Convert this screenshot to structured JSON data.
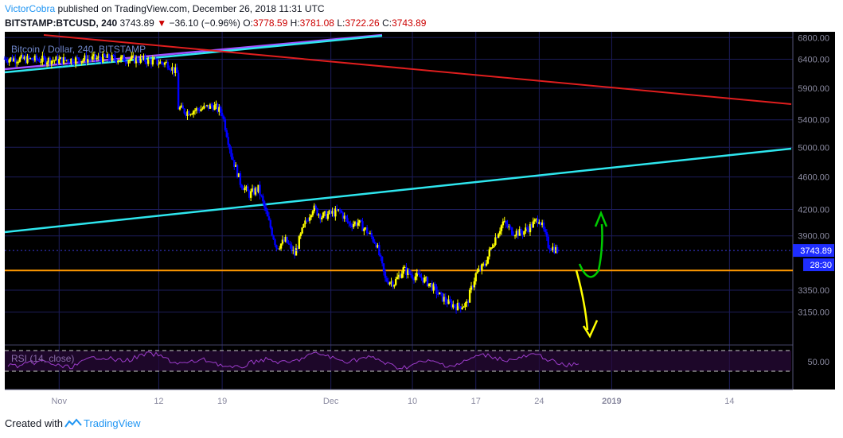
{
  "header": {
    "author": "VictorCobra",
    "published_text": "published on TradingView.com, December 26, 2018 11:31 UTC",
    "symbol": "BITSTAMP:BTCUSD, 240",
    "last_price": "3743.89",
    "change": "−36.10 (−0.96%)",
    "open_label": "O:",
    "open": "3778.59",
    "high_label": "H:",
    "high": "3781.08",
    "low_label": "L:",
    "low": "3722.26",
    "close_label": "C:",
    "close": "3743.89"
  },
  "footer": {
    "created_with": "Created with",
    "brand": "TradingView"
  },
  "colors": {
    "background": "#000000",
    "grid": "#1c1c5a",
    "up_candle": "#ffff00",
    "down_candle": "#0000ff",
    "trend_cyan": "#2ee6ee",
    "trend_red": "#e01e1e",
    "trend_purple": "#a050ff",
    "support_orange": "#ff9900",
    "arrow_green": "#00cc00",
    "arrow_yellow": "#ffff00",
    "rsi": "#9b3cc9",
    "price_label_bg": "#1e2dff"
  },
  "chart_data": {
    "type": "candlestick",
    "title": "Bitcoin / Dollar, 240, BITSTAMP",
    "x_ticks": [
      "Nov",
      "12",
      "19",
      "Dec",
      "10",
      "17",
      "24",
      "2019",
      "14"
    ],
    "y_ticks": [
      6800,
      6400,
      5900,
      5400,
      5000,
      4600,
      4200,
      3900,
      3350,
      3150
    ],
    "y_scale": "log",
    "ylim": [
      2950,
      6850
    ],
    "xlim": [
      "2018-10-26",
      "2019-01-21"
    ],
    "current_price": "3743.89",
    "countdown": "28:30",
    "support_level": 3540,
    "price_path": [
      [
        "2018-10-26",
        6410
      ],
      [
        "2018-11-01",
        6380
      ],
      [
        "2018-11-06",
        6420
      ],
      [
        "2018-11-10",
        6390
      ],
      [
        "2018-11-13",
        6320
      ],
      [
        "2018-11-14",
        6150
      ],
      [
        "2018-11-14",
        5600
      ],
      [
        "2018-11-15",
        5520
      ],
      [
        "2018-11-17",
        5580
      ],
      [
        "2018-11-18",
        5620
      ],
      [
        "2018-11-19",
        5500
      ],
      [
        "2018-11-20",
        4900
      ],
      [
        "2018-11-21",
        4530
      ],
      [
        "2018-11-22",
        4380
      ],
      [
        "2018-11-23",
        4450
      ],
      [
        "2018-11-24",
        4100
      ],
      [
        "2018-11-25",
        3780
      ],
      [
        "2018-11-26",
        3850
      ],
      [
        "2018-11-27",
        3700
      ],
      [
        "2018-11-28",
        4000
      ],
      [
        "2018-11-29",
        4220
      ],
      [
        "2018-11-30",
        4120
      ],
      [
        "2018-12-01",
        4150
      ],
      [
        "2018-12-02",
        4180
      ],
      [
        "2018-12-03",
        4030
      ],
      [
        "2018-12-04",
        4050
      ],
      [
        "2018-12-05",
        3950
      ],
      [
        "2018-12-06",
        3820
      ],
      [
        "2018-12-07",
        3450
      ],
      [
        "2018-12-08",
        3420
      ],
      [
        "2018-12-09",
        3550
      ],
      [
        "2018-12-10",
        3490
      ],
      [
        "2018-12-11",
        3470
      ],
      [
        "2018-12-12",
        3400
      ],
      [
        "2018-12-13",
        3300
      ],
      [
        "2018-12-14",
        3230
      ],
      [
        "2018-12-15",
        3200
      ],
      [
        "2018-12-16",
        3220
      ],
      [
        "2018-12-17",
        3500
      ],
      [
        "2018-12-18",
        3600
      ],
      [
        "2018-12-19",
        3850
      ],
      [
        "2018-12-20",
        4050
      ],
      [
        "2018-12-21",
        3950
      ],
      [
        "2018-12-22",
        3930
      ],
      [
        "2018-12-23",
        4000
      ],
      [
        "2018-12-24",
        4100
      ],
      [
        "2018-12-25",
        3800
      ],
      [
        "2018-12-26",
        3744
      ]
    ],
    "rsi": {
      "label": "RSI (14, close)",
      "tick": "50.00",
      "upper": 70,
      "lower": 30
    }
  }
}
